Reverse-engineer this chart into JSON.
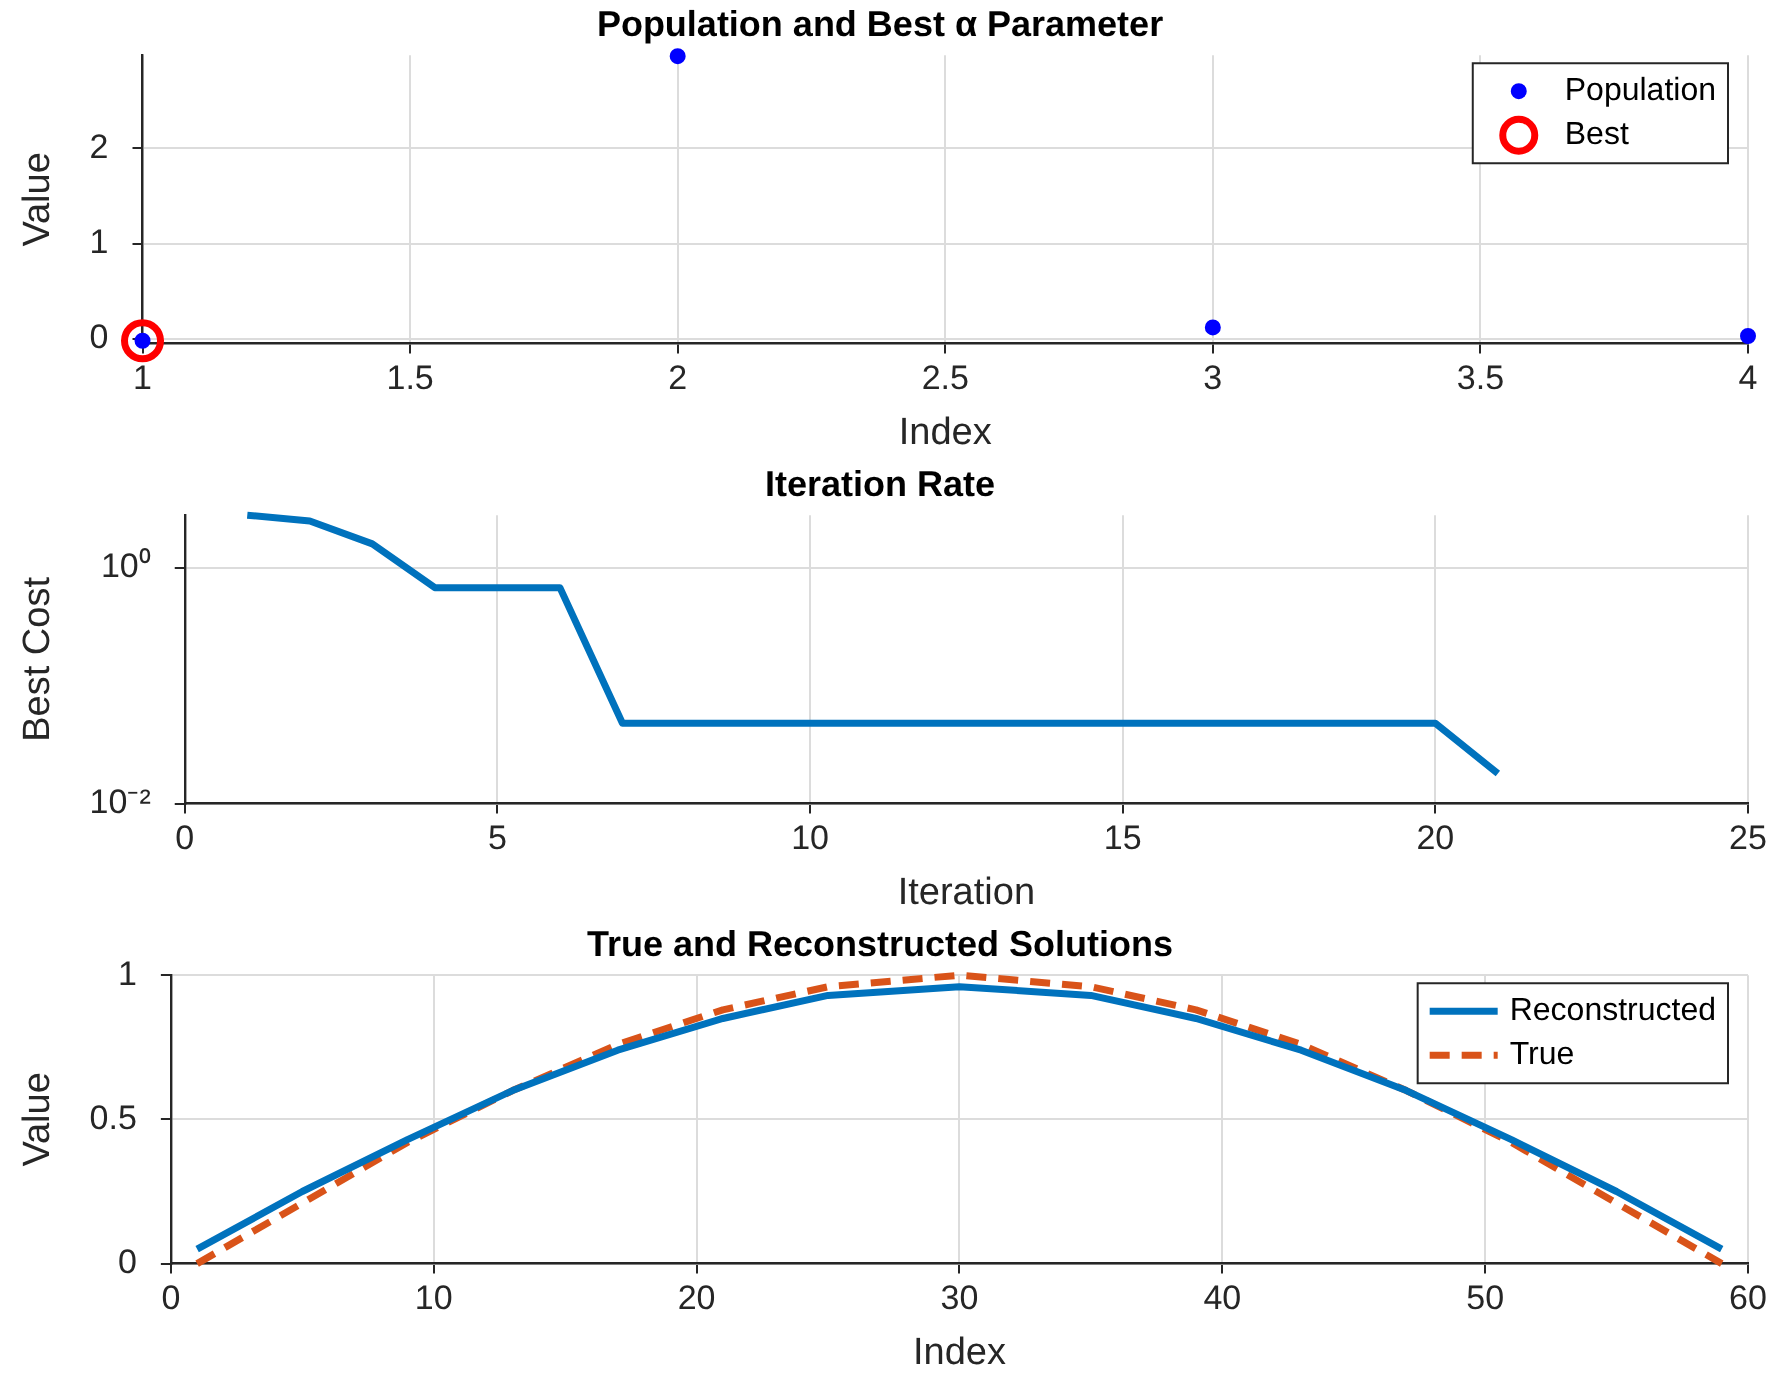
{
  "chart_data": [
    {
      "type": "scatter",
      "title": "Population and Best α Parameter",
      "xlabel": "Index",
      "ylabel": "Value",
      "xlim": [
        1,
        4
      ],
      "xticks": [
        1,
        1.5,
        2,
        2.5,
        3,
        3.5,
        4
      ],
      "ylim": [
        -0.05,
        2.98
      ],
      "yticks": [
        0,
        1,
        2
      ],
      "grid": true,
      "legend": "top right",
      "marker": "circle",
      "series": [
        {
          "name": "Population",
          "color": "#0000ff",
          "x": [
            1,
            2,
            3,
            4
          ],
          "values": [
            -0.02,
            2.97,
            0.12,
            0.03
          ]
        },
        {
          "name": "Best",
          "color": "#ff0000",
          "x": [
            1
          ],
          "values": [
            -0.02
          ]
        }
      ]
    },
    {
      "type": "line",
      "title": "Iteration Rate",
      "xlabel": "Iteration",
      "ylabel": "Best Cost",
      "log": "y",
      "xlim": [
        0,
        25
      ],
      "xticks": [
        0,
        5,
        10,
        15,
        20,
        25
      ],
      "ylim": [
        0.01,
        2.8
      ],
      "yticks": [
        {
          "value": 0.01,
          "label": "10⁻²"
        },
        {
          "value": 1,
          "label": "10⁰"
        }
      ],
      "grid": true,
      "marker": "none",
      "line_style": "solid",
      "series": [
        {
          "color": "#0072bd",
          "x": [
            1,
            2,
            3,
            4,
            5,
            6,
            7,
            8,
            9,
            10,
            11,
            12,
            13,
            14,
            15,
            16,
            17,
            18,
            19,
            20,
            21
          ],
          "values": [
            2.8,
            2.5,
            1.6,
            0.68,
            0.68,
            0.68,
            0.048,
            0.048,
            0.048,
            0.048,
            0.048,
            0.048,
            0.048,
            0.048,
            0.048,
            0.048,
            0.048,
            0.048,
            0.048,
            0.048,
            0.018
          ]
        }
      ]
    },
    {
      "type": "line",
      "title": "True and Reconstructed Solutions",
      "xlabel": "Index",
      "ylabel": "Value",
      "xlim": [
        0,
        60
      ],
      "xticks": [
        0,
        10,
        20,
        30,
        40,
        50,
        60
      ],
      "ylim": [
        0,
        1
      ],
      "yticks": [
        0,
        0.5,
        1
      ],
      "grid": true,
      "legend": "top right",
      "marker": "none",
      "series": [
        {
          "name": "Reconstructed",
          "color": "#0072bd",
          "line_style": "solid",
          "x": [
            1,
            5,
            9,
            13,
            17,
            21,
            25,
            30,
            35,
            39,
            43,
            47,
            51,
            55,
            59
          ],
          "values": [
            0.05,
            0.25,
            0.43,
            0.6,
            0.74,
            0.85,
            0.93,
            0.96,
            0.93,
            0.85,
            0.74,
            0.6,
            0.43,
            0.25,
            0.05
          ]
        },
        {
          "name": "True",
          "color": "#d95319",
          "line_style": "dashed",
          "x": [
            1,
            5,
            9,
            13,
            17,
            21,
            25,
            30,
            35,
            39,
            43,
            47,
            51,
            55,
            59
          ],
          "values": [
            0,
            0.21,
            0.42,
            0.6,
            0.76,
            0.88,
            0.96,
            1,
            0.96,
            0.88,
            0.76,
            0.6,
            0.42,
            0.21,
            0
          ]
        }
      ]
    }
  ]
}
